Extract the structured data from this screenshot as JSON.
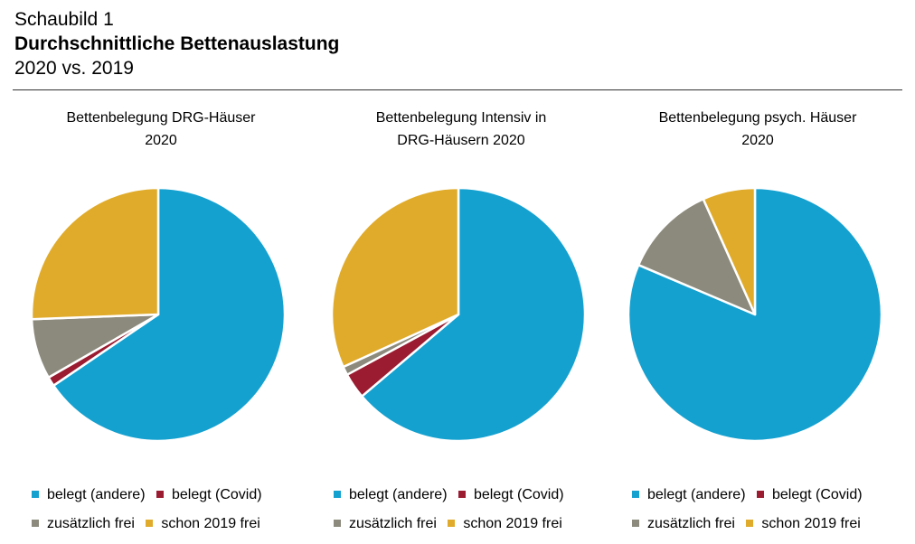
{
  "header": {
    "label": "Schaubild 1",
    "title": "Durchschnittliche Bettenauslastung",
    "subtitle": "2020 vs. 2019"
  },
  "legend_labels": {
    "belegt_andere": "belegt (andere)",
    "belegt_covid": "belegt (Covid)",
    "zusaetzlich_frei": "zusätzlich frei",
    "schon_2019_frei": "schon 2019 frei"
  },
  "colors": {
    "belegt_andere": "#14a1d0",
    "belegt_covid": "#9b1b30",
    "zusaetzlich_frei": "#8c8a7c",
    "schon_2019_frei": "#e0ab2a"
  },
  "chart_data": [
    {
      "type": "pie",
      "title": "Bettenbelegung DRG-Häuser\n2020",
      "categories": [
        "belegt (andere)",
        "belegt (Covid)",
        "zusätzlich frei",
        "schon 2019 frei"
      ],
      "values": [
        65.5,
        1.2,
        7.7,
        25.6
      ]
    },
    {
      "type": "pie",
      "title": "Bettenbelegung Intensiv in\nDRG-Häusern 2020",
      "categories": [
        "belegt (andere)",
        "belegt (Covid)",
        "zusätzlich frei",
        "schon 2019 frei"
      ],
      "values": [
        63.8,
        3.3,
        1.1,
        31.8
      ]
    },
    {
      "type": "pie",
      "title": "Bettenbelegung psych. Häuser\n2020",
      "categories": [
        "belegt (andere)",
        "belegt (Covid)",
        "zusätzlich frei",
        "schon 2019 frei"
      ],
      "values": [
        81.4,
        0.0,
        11.9,
        6.7
      ]
    }
  ]
}
